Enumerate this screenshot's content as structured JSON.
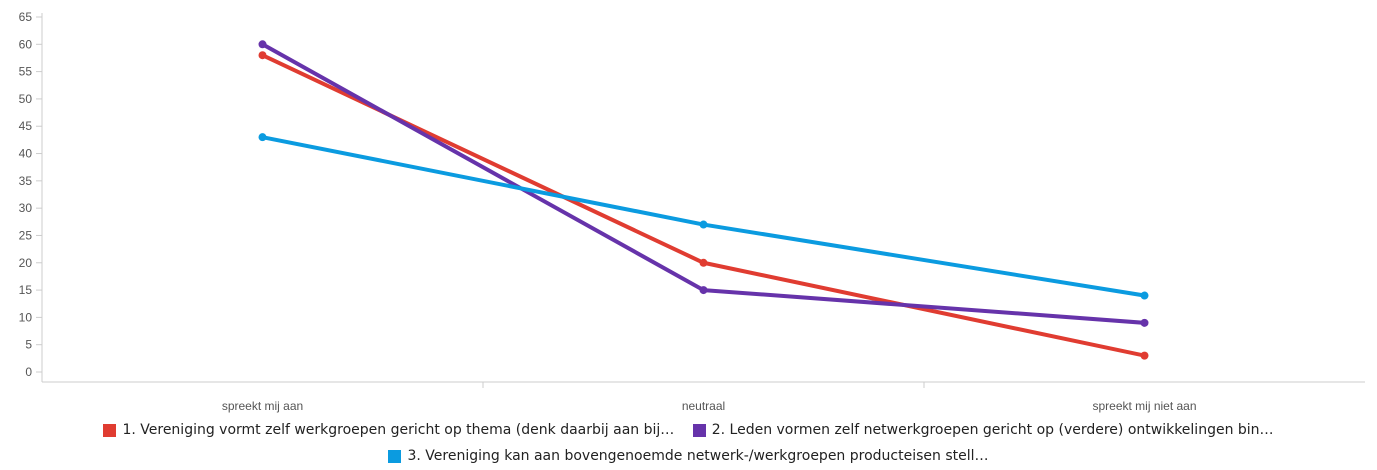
{
  "chart_data": {
    "type": "line",
    "categories": [
      "spreekt mij aan",
      "neutraal",
      "spreekt mij niet aan"
    ],
    "series": [
      {
        "name": "1. Vereniging vormt zelf werkgroepen gericht op thema (denk daarbij aan bij…",
        "color": "#e03c31",
        "values": [
          58,
          20,
          3
        ]
      },
      {
        "name": "2. Leden vormen zelf netwerkgroepen gericht op (verdere) ontwikkelingen bin…",
        "color": "#6633aa",
        "values": [
          60,
          15,
          9
        ]
      },
      {
        "name": "3. Vereniging kan aan bovengenoemde netwerk-/werkgroepen producteisen stell…",
        "color": "#0b9be0",
        "values": [
          43,
          27,
          14
        ]
      }
    ],
    "yticks": [
      0,
      5,
      10,
      15,
      20,
      25,
      30,
      35,
      40,
      45,
      50,
      55,
      60,
      65
    ],
    "ylim": [
      0,
      65
    ],
    "grid": false,
    "legend_position": "bottom"
  }
}
